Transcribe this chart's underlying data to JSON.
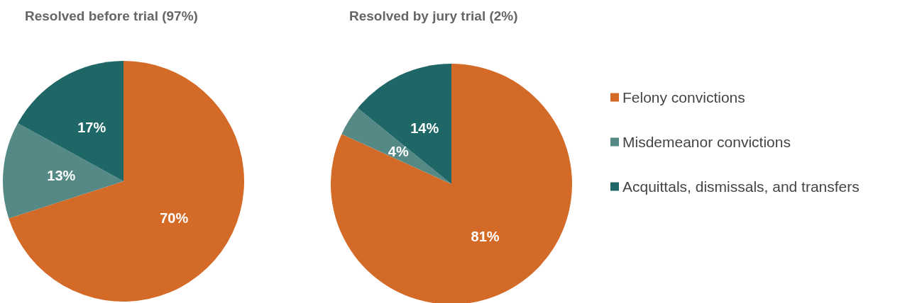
{
  "chart_data": [
    {
      "type": "pie",
      "title": "Resolved before trial (97%)",
      "categories": [
        null,
        null,
        null
      ],
      "values": [
        70,
        13,
        17
      ],
      "value_labels": [
        "70%",
        "13%",
        "17%"
      ],
      "colors": [
        "#d46a27",
        "#548985",
        "#1f6667"
      ],
      "legend": false
    },
    {
      "type": "pie",
      "title": "Resolved by jury trial (2%)",
      "categories": [
        "Felony convictions",
        "Misdemeanor convictions",
        "Acquittals, dismissals, and transfers"
      ],
      "values": [
        81,
        4,
        14
      ],
      "value_labels": [
        "81%",
        "4%",
        "14%"
      ],
      "colors": [
        "#d46a27",
        "#548985",
        "#1f6667"
      ],
      "legend": "right"
    }
  ]
}
